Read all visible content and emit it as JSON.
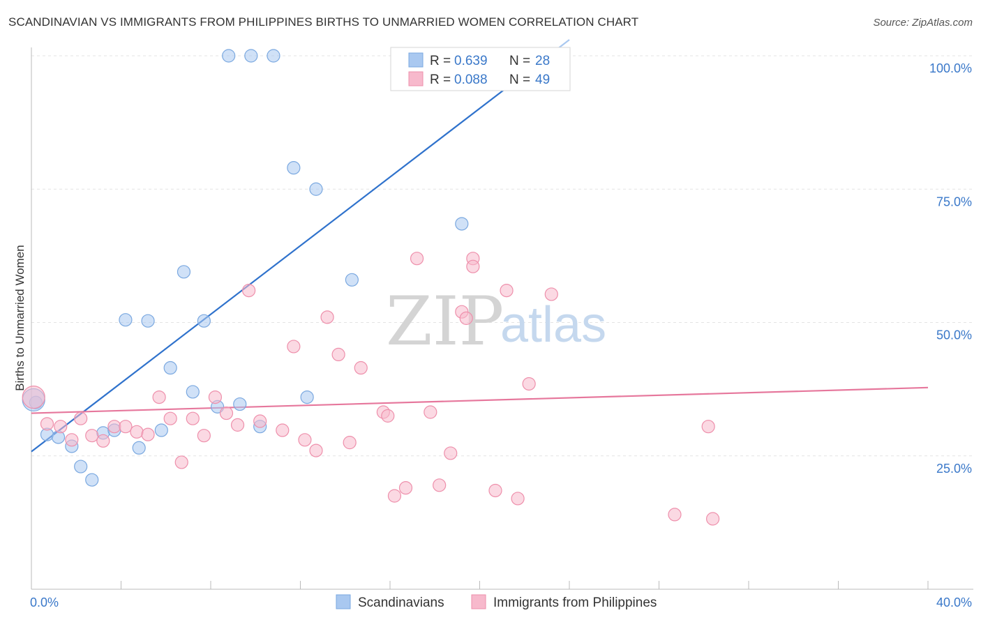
{
  "title": "SCANDINAVIAN VS IMMIGRANTS FROM PHILIPPINES BIRTHS TO UNMARRIED WOMEN CORRELATION CHART",
  "source": "Source: ZipAtlas.com",
  "watermark": {
    "zip": "ZIP",
    "atlas": "atlas"
  },
  "legend_box": {
    "rows": [
      {
        "r_label": "R = ",
        "r_value": "0.639",
        "n_label": "N = ",
        "n_value": "28",
        "color": "#a9c8f0"
      },
      {
        "r_label": "R = ",
        "r_value": "0.088",
        "n_label": "N = ",
        "n_value": "49",
        "color": "#f7b9cc"
      }
    ]
  },
  "chart_data": {
    "type": "scatter",
    "title": "SCANDINAVIAN VS IMMIGRANTS FROM PHILIPPINES BIRTHS TO UNMARRIED WOMEN CORRELATION CHART",
    "xlabel": "",
    "ylabel": "Births to Unmarried Women",
    "xlim": [
      0,
      40
    ],
    "ylim": [
      0,
      100
    ],
    "x_tick_labels": [
      "0.0%",
      "40.0%"
    ],
    "y_tick_labels": [
      "25.0%",
      "50.0%",
      "75.0%",
      "100.0%"
    ],
    "y_ticks": [
      25,
      50,
      75,
      100
    ],
    "grid": true,
    "series": [
      {
        "name": "Scandinavians",
        "color": "#a9c8f0",
        "stroke": "#7aa8e0",
        "trend_color": "#2f72cc",
        "points": [
          [
            0.2,
            35.0
          ],
          [
            0.7,
            29.0
          ],
          [
            1.2,
            28.5
          ],
          [
            1.8,
            26.8
          ],
          [
            2.2,
            23.0
          ],
          [
            2.7,
            20.5
          ],
          [
            3.2,
            29.3
          ],
          [
            3.7,
            29.8
          ],
          [
            4.2,
            50.5
          ],
          [
            4.8,
            26.5
          ],
          [
            5.2,
            50.3
          ],
          [
            5.8,
            29.8
          ],
          [
            6.2,
            41.5
          ],
          [
            6.8,
            59.5
          ],
          [
            7.2,
            37.0
          ],
          [
            7.7,
            50.3
          ],
          [
            8.3,
            34.2
          ],
          [
            8.8,
            100.0
          ],
          [
            9.3,
            34.7
          ],
          [
            9.8,
            100.0
          ],
          [
            10.2,
            30.5
          ],
          [
            10.8,
            100.0
          ],
          [
            11.7,
            79.0
          ],
          [
            12.3,
            36.0
          ],
          [
            12.7,
            75.0
          ],
          [
            14.3,
            58.0
          ],
          [
            19.2,
            68.5
          ],
          [
            0.1,
            35.5
          ]
        ],
        "trend": [
          [
            0.0,
            25.8
          ],
          [
            24.0,
            103.0
          ]
        ]
      },
      {
        "name": "Immigrants from Philippines",
        "color": "#f7b9cc",
        "stroke": "#ee8fab",
        "trend_color": "#e6779c",
        "points": [
          [
            0.1,
            36.0
          ],
          [
            0.7,
            31.0
          ],
          [
            1.3,
            30.5
          ],
          [
            1.8,
            28.0
          ],
          [
            2.2,
            32.0
          ],
          [
            2.7,
            28.8
          ],
          [
            3.2,
            27.8
          ],
          [
            3.7,
            30.5
          ],
          [
            4.2,
            30.5
          ],
          [
            4.7,
            29.5
          ],
          [
            5.2,
            29.0
          ],
          [
            5.7,
            36.0
          ],
          [
            6.2,
            32.0
          ],
          [
            6.7,
            23.8
          ],
          [
            7.2,
            32.0
          ],
          [
            7.7,
            28.8
          ],
          [
            8.2,
            36.0
          ],
          [
            8.7,
            33.0
          ],
          [
            9.2,
            30.8
          ],
          [
            9.7,
            56.0
          ],
          [
            10.2,
            31.5
          ],
          [
            11.2,
            29.8
          ],
          [
            11.7,
            45.5
          ],
          [
            12.2,
            28.0
          ],
          [
            12.7,
            26.0
          ],
          [
            13.2,
            51.0
          ],
          [
            13.7,
            44.0
          ],
          [
            14.2,
            27.5
          ],
          [
            14.7,
            41.5
          ],
          [
            15.7,
            33.2
          ],
          [
            15.9,
            32.5
          ],
          [
            16.2,
            17.5
          ],
          [
            16.7,
            19.0
          ],
          [
            17.2,
            62.0
          ],
          [
            17.8,
            33.2
          ],
          [
            18.2,
            19.5
          ],
          [
            18.7,
            25.5
          ],
          [
            19.2,
            52.0
          ],
          [
            19.4,
            50.8
          ],
          [
            19.7,
            62.0
          ],
          [
            19.7,
            60.5
          ],
          [
            20.7,
            18.5
          ],
          [
            21.2,
            56.0
          ],
          [
            21.7,
            17.0
          ],
          [
            22.2,
            38.5
          ],
          [
            23.2,
            55.3
          ],
          [
            28.7,
            14.0
          ],
          [
            30.2,
            30.5
          ],
          [
            30.4,
            13.2
          ]
        ],
        "trend": [
          [
            0.0,
            33.0
          ],
          [
            40.0,
            37.8
          ]
        ]
      }
    ]
  },
  "bottom_legend": [
    {
      "label": "Scandinavians",
      "color": "#a9c8f0",
      "stroke": "#7aa8e0"
    },
    {
      "label": "Immigrants from Philippines",
      "color": "#f7b9cc",
      "stroke": "#ee8fab"
    }
  ]
}
